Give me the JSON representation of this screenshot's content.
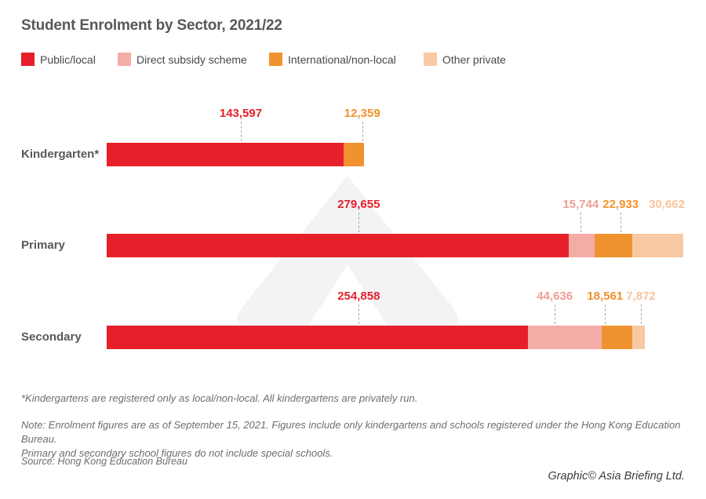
{
  "title": "Student Enrolment by Sector, 2021/22",
  "legend": [
    {
      "label": "Public/local",
      "color": "#e5202b"
    },
    {
      "label": "Direct subsidy scheme",
      "color": "#f4aca7"
    },
    {
      "label": "International/non-local",
      "color": "#f0922f"
    },
    {
      "label": "Other private",
      "color": "#f8c9a3"
    }
  ],
  "chart_data": {
    "type": "bar",
    "orientation": "horizontal",
    "stacked": true,
    "title": "Student Enrolment by Sector, 2021/22",
    "categories": [
      "Kindergarten*",
      "Primary",
      "Secondary"
    ],
    "axis_max": 350000,
    "grid": false,
    "legend_position": "top",
    "series": [
      {
        "name": "Public/local",
        "color": "#e5202b",
        "label_color": "#e5202b",
        "values": [
          143597,
          279655,
          254858
        ],
        "label_anchor_pct": [
          23.2,
          43.6,
          43.6
        ],
        "show_dash": [
          true,
          true,
          true
        ]
      },
      {
        "name": "Direct subsidy scheme",
        "color": "#f4aca7",
        "label_color": "#ef9e97",
        "values": [
          null,
          15744,
          44636
        ],
        "label_anchor_pct": [
          null,
          82.0,
          77.5
        ],
        "show_dash": [
          null,
          true,
          true
        ]
      },
      {
        "name": "International/non-local",
        "color": "#f0922f",
        "label_color": "#f0912d",
        "values": [
          12359,
          22933,
          18561
        ],
        "label_anchor_pct": [
          44.2,
          88.9,
          86.2
        ],
        "show_dash": [
          true,
          true,
          true
        ]
      },
      {
        "name": "Other private",
        "color": "#f8c9a3",
        "label_color": "#f7c49c",
        "values": [
          null,
          30662,
          7872
        ],
        "label_anchor_pct": [
          null,
          96.9,
          92.4
        ],
        "show_dash": [
          null,
          false,
          true
        ]
      }
    ]
  },
  "footnote": "*Kindergartens are registered only as local/non-local. All kindergartens are privately run.",
  "note_line1": "Note: Enrolment figures are as of September 15, 2021. Figures include only kindergartens and schools registered under the Hong Kong Education Bureau.",
  "note_line2": "Primary and secondary school figures do not include special schools.",
  "source": "Source: Hong Kong Education Bureau",
  "credit": "Graphic© Asia Briefing Ltd.",
  "watermark_color": "#f3f3f5"
}
